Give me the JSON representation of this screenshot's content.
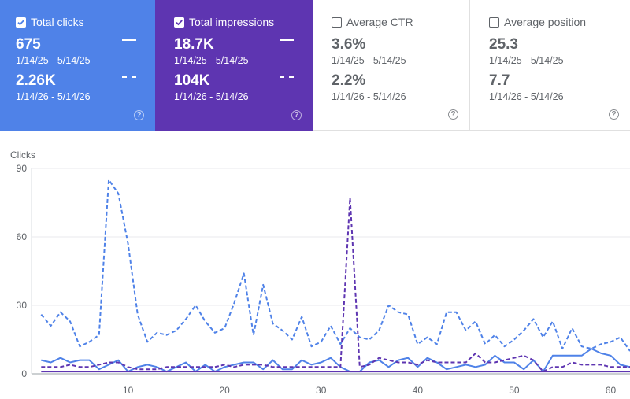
{
  "cards": [
    {
      "label": "Total clicks",
      "checked": true,
      "color": "#4f82e8",
      "value1": "675",
      "range1": "1/14/25 - 5/14/25",
      "value2": "2.26K",
      "range2": "1/14/26 - 5/14/26"
    },
    {
      "label": "Total impressions",
      "checked": true,
      "color": "#5e35b1",
      "value1": "18.7K",
      "range1": "1/14/25 - 5/14/25",
      "value2": "104K",
      "range2": "1/14/26 - 5/14/26"
    },
    {
      "label": "Average CTR",
      "checked": false,
      "color": "#ffffff",
      "value1": "3.6%",
      "range1": "1/14/25 - 5/14/25",
      "value2": "2.2%",
      "range2": "1/14/26 - 5/14/26"
    },
    {
      "label": "Average position",
      "checked": false,
      "color": "#ffffff",
      "value1": "25.3",
      "range1": "1/14/25 - 5/14/25",
      "value2": "7.7",
      "range2": "1/14/26 - 5/14/26"
    }
  ],
  "help_glyph": "?",
  "chart_data": {
    "type": "line",
    "ylabel": "Clicks",
    "xlim": [
      0,
      62
    ],
    "ylim": [
      0,
      90
    ],
    "yticks": [
      0,
      30,
      60,
      90
    ],
    "xticks": [
      10,
      20,
      30,
      40,
      50,
      60
    ],
    "grid": true,
    "series": [
      {
        "color": "#4f82e8",
        "dashed": true,
        "role": "clicks-current",
        "x": [
          1,
          2,
          3,
          4,
          5,
          6,
          7,
          8,
          9,
          10,
          11,
          12,
          13,
          14,
          15,
          16,
          17,
          18,
          19,
          20,
          21,
          22,
          23,
          24,
          25,
          26,
          27,
          28,
          29,
          30,
          31,
          32,
          33,
          34,
          35,
          36,
          37,
          38,
          39,
          40,
          41,
          42,
          43,
          44,
          45,
          46,
          47,
          48,
          49,
          50,
          51,
          52,
          53,
          54,
          55,
          56,
          57,
          58,
          59,
          60,
          61,
          62
        ],
        "y": [
          26,
          21,
          27,
          23,
          12,
          14,
          17,
          85,
          79,
          57,
          26,
          14,
          18,
          17,
          19,
          24,
          30,
          23,
          18,
          20,
          31,
          44,
          17,
          39,
          22,
          19,
          15,
          25,
          12,
          14,
          21,
          13,
          20,
          16,
          15,
          19,
          30,
          27,
          26,
          13,
          16,
          13,
          27,
          27,
          19,
          23,
          13,
          17,
          12,
          15,
          19,
          24,
          16,
          23,
          11,
          20,
          12,
          11,
          13,
          14,
          16,
          10
        ]
      },
      {
        "color": "#4f82e8",
        "dashed": false,
        "role": "clicks-previous",
        "x": [
          1,
          2,
          3,
          4,
          5,
          6,
          7,
          8,
          9,
          10,
          11,
          12,
          13,
          14,
          15,
          16,
          17,
          18,
          19,
          20,
          21,
          22,
          23,
          24,
          25,
          26,
          27,
          28,
          29,
          30,
          31,
          32,
          33,
          34,
          35,
          36,
          37,
          38,
          39,
          40,
          41,
          42,
          43,
          44,
          45,
          46,
          47,
          48,
          49,
          50,
          51,
          52,
          53,
          54,
          55,
          56,
          57,
          58,
          59,
          60,
          61,
          62
        ],
        "y": [
          6,
          5,
          7,
          5,
          6,
          6,
          2,
          4,
          6,
          1,
          3,
          4,
          3,
          1,
          3,
          5,
          1,
          4,
          1,
          3,
          4,
          5,
          5,
          2,
          6,
          2,
          2,
          6,
          4,
          5,
          7,
          3,
          1,
          1,
          5,
          6,
          3,
          6,
          7,
          3,
          7,
          5,
          2,
          3,
          4,
          3,
          4,
          8,
          5,
          5,
          2,
          6,
          1,
          8,
          8,
          8,
          8,
          11,
          9,
          8,
          4,
          3
        ]
      },
      {
        "color": "#5e35b1",
        "dashed": true,
        "role": "impressions-current",
        "x": [
          1,
          2,
          3,
          4,
          5,
          6,
          7,
          8,
          9,
          10,
          11,
          12,
          13,
          14,
          15,
          16,
          17,
          18,
          19,
          20,
          21,
          22,
          23,
          24,
          25,
          26,
          27,
          28,
          29,
          30,
          31,
          32,
          33,
          34,
          35,
          36,
          37,
          38,
          39,
          40,
          41,
          42,
          43,
          44,
          45,
          46,
          47,
          48,
          49,
          50,
          51,
          52,
          53,
          54,
          55,
          56,
          57,
          58,
          59,
          60,
          61,
          62
        ],
        "y": [
          3,
          3,
          3,
          4,
          3,
          3,
          4,
          5,
          5,
          3,
          2,
          2,
          2,
          3,
          3,
          3,
          3,
          3,
          3,
          4,
          3,
          4,
          4,
          4,
          3,
          3,
          3,
          3,
          3,
          3,
          3,
          3,
          77,
          3,
          4,
          7,
          6,
          5,
          5,
          4,
          6,
          5,
          5,
          5,
          5,
          9,
          5,
          5,
          6,
          7,
          8,
          6,
          1,
          3,
          3,
          5,
          4,
          4,
          4,
          3,
          3,
          3
        ]
      },
      {
        "color": "#5e35b1",
        "dashed": false,
        "role": "impressions-previous",
        "x": [
          1,
          2,
          3,
          4,
          5,
          6,
          7,
          8,
          9,
          10,
          11,
          12,
          13,
          14,
          15,
          16,
          17,
          18,
          19,
          20,
          21,
          22,
          23,
          24,
          25,
          26,
          27,
          28,
          29,
          30,
          31,
          32,
          33,
          34,
          35,
          36,
          37,
          38,
          39,
          40,
          41,
          42,
          43,
          44,
          45,
          46,
          47,
          48,
          49,
          50,
          51,
          52,
          53,
          54,
          55,
          56,
          57,
          58,
          59,
          60,
          61,
          62
        ],
        "y": [
          1,
          1,
          1,
          1,
          1,
          1,
          1,
          1,
          1,
          1,
          1,
          1,
          1,
          1,
          1,
          1,
          1,
          1,
          1,
          1,
          1,
          1,
          1,
          1,
          1,
          1,
          1,
          1,
          1,
          1,
          1,
          1,
          1,
          1,
          1,
          1,
          1,
          1,
          1,
          1,
          1,
          1,
          1,
          1,
          1,
          1,
          1,
          1,
          1,
          1,
          1,
          1,
          1,
          1,
          1,
          1,
          1,
          1,
          1,
          1,
          1,
          1
        ]
      }
    ]
  }
}
